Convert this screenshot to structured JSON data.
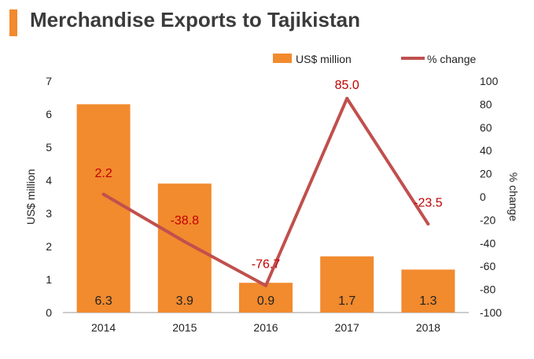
{
  "chart_data": {
    "type": "bar",
    "title": "Merchandise Exports to Tajikistan",
    "categories": [
      "2014",
      "2015",
      "2016",
      "2017",
      "2018"
    ],
    "series": [
      {
        "name": "US$ million",
        "type": "bar",
        "axis": "left",
        "values": [
          6.3,
          3.9,
          0.9,
          1.7,
          1.3
        ]
      },
      {
        "name": "% change",
        "type": "line",
        "axis": "right",
        "values": [
          2.2,
          -38.8,
          -76.7,
          85.0,
          -23.5
        ]
      }
    ],
    "ylabel": "US$ million",
    "ylim": [
      0,
      7
    ],
    "yticks": [
      "0",
      "1",
      "2",
      "3",
      "4",
      "5",
      "6",
      "7"
    ],
    "y2label": "% change",
    "y2lim": [
      -100,
      100
    ],
    "y2ticks": [
      "-100",
      "-80",
      "-60",
      "-40",
      "-20",
      "0",
      "20",
      "40",
      "60",
      "80",
      "100"
    ],
    "bar_labels": [
      "6.3",
      "3.9",
      "0.9",
      "1.7",
      "1.3"
    ],
    "line_labels": [
      "2.2",
      "-38.8",
      "-76.7",
      "85.0",
      "-23.5"
    ],
    "legend_position": "top-right",
    "grid": false,
    "colors": {
      "bar": "#f28a2e",
      "line": "#c0504d",
      "line_label": "#c00000"
    }
  }
}
